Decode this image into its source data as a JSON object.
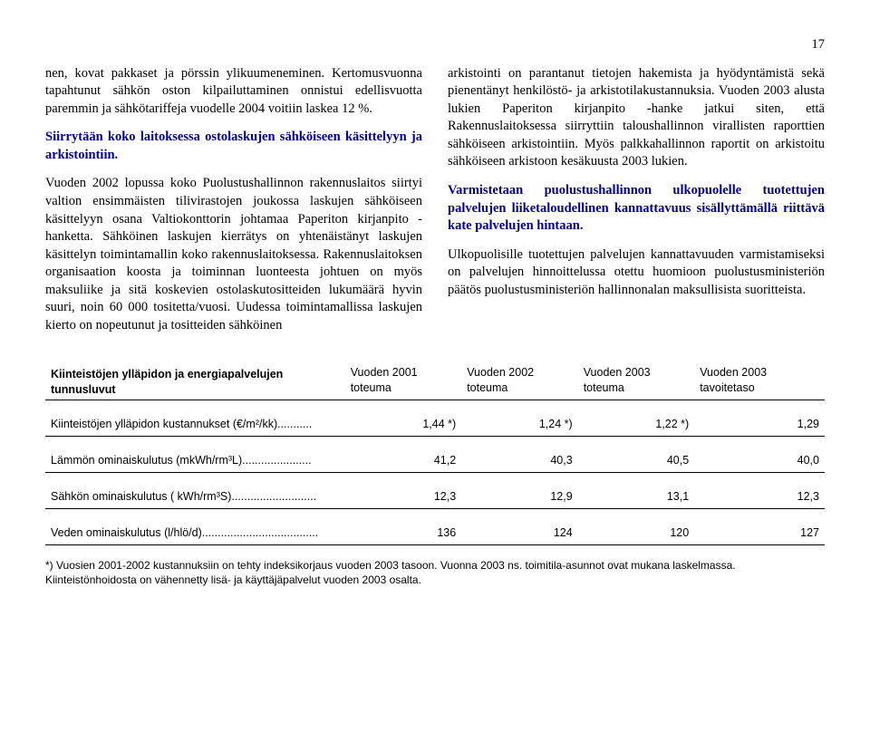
{
  "page_number": "17",
  "body": {
    "p1": "nen, kovat pakkaset ja pörssin ylikuumeneminen. Kertomusvuonna tapahtunut sähkön oston kilpailuttaminen onnistui edellisvuotta paremmin ja sähkötariffeja vuodelle 2004 voitiin laskea 12 %.",
    "p2": "Siirrytään koko laitoksessa ostolaskujen sähköiseen käsittelyyn ja arkistointiin.",
    "p3": "Vuoden 2002 lopussa koko Puolustushallinnon rakennuslaitos siirtyi valtion ensimmäisten tilivirastojen joukossa laskujen sähköiseen käsittelyyn osana Valtiokonttorin johtamaa Paperiton kirjanpito -hanketta. Sähköinen laskujen kierrätys on yhtenäistänyt laskujen käsittelyn toimintamallin koko rakennuslaitoksessa. Rakennuslaitoksen organisaation koosta ja toiminnan luonteesta johtuen on myös maksuliike ja sitä koskevien ostolaskutositteiden lukumäärä hyvin suuri, noin 60 000 tositetta/vuosi. Uudessa toimintamallissa laskujen kierto on nopeutunut ja tositteiden sähköinen",
    "p4": "arkistointi on parantanut tietojen hakemista ja hyödyntämistä sekä pienentänyt henkilöstö- ja arkistotilakustannuksia. Vuoden 2003 alusta lukien Paperiton kirjanpito -hanke jatkui siten, että Rakennuslaitoksessa siirryttiin taloushallinnon virallisten raporttien sähköiseen arkistointiin. Myös palkkahallinnon raportit on arkistoitu sähköiseen arkistoon kesäkuusta 2003 lukien.",
    "p5": "Varmistetaan puolustushallinnon ulkopuolelle tuotettujen palvelujen liiketaloudellinen kannattavuus sisällyttämällä riittävä kate palvelujen hintaan.",
    "p6": "Ulkopuolisille tuotettujen palvelujen kannattavuuden varmistamiseksi on palvelujen hinnoittelussa otettu huomioon puolustusministeriön päätös puolustusministeriön hallinnonalan maksullisista suoritteista."
  },
  "table": {
    "title": "Kiinteistöjen ylläpidon ja energiapalvelujen tunnusluvut",
    "headers": {
      "c1": "Vuoden 2001 toteuma",
      "c2": "Vuoden 2002 toteuma",
      "c3": "Vuoden 2003 toteuma",
      "c4": "Vuoden 2003 tavoitetaso"
    },
    "rows": [
      {
        "label": "Kiinteistöjen ylläpidon kustannukset (€/m²/kk)...........",
        "v1": "1,44 *)",
        "v2": "1,24 *)",
        "v3": "1,22 *)",
        "v4": "1,29"
      },
      {
        "label": "Lämmön ominaiskulutus (mkWh/rm³L)......................",
        "v1": "41,2",
        "v2": "40,3",
        "v3": "40,5",
        "v4": "40,0"
      },
      {
        "label": "Sähkön ominaiskulutus ( kWh/rm³S)...........................",
        "v1": "12,3",
        "v2": "12,9",
        "v3": "13,1",
        "v4": "12,3"
      },
      {
        "label": "Veden ominaiskulutus (l/hlö/d).....................................",
        "v1": "136",
        "v2": "124",
        "v3": "120",
        "v4": "127"
      }
    ]
  },
  "footnote": "*) Vuosien 2001-2002 kustannuksiin on tehty indeksikorjaus vuoden 2003 tasoon. Vuonna 2003 ns. toimitila-asunnot ovat mukana laskelmassa. Kiinteistönhoidosta on vähennetty lisä- ja käyttäjäpalvelut vuoden 2003 osalta."
}
